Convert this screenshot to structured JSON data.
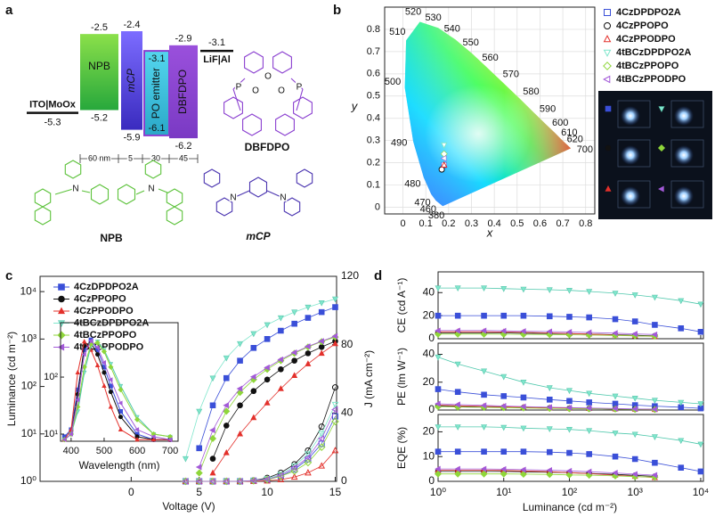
{
  "panel_labels": [
    "a",
    "b",
    "c",
    "d"
  ],
  "emitters": [
    {
      "name": "4CzDPDPO2A",
      "color": "#3a4fd8",
      "marker": "square"
    },
    {
      "name": "4CzPPOPO",
      "color": "#111111",
      "marker": "circle"
    },
    {
      "name": "4CzPPODPO",
      "color": "#e3302b",
      "marker": "triangle"
    },
    {
      "name": "4tBCzDPDPO2A",
      "color": "#7fe6cc",
      "marker": "triangle-down"
    },
    {
      "name": "4tBCzPPOPO",
      "color": "#8fd63a",
      "marker": "diamond"
    },
    {
      "name": "4tBCzPPODPO",
      "color": "#a35ad8",
      "marker": "triangle-left"
    }
  ],
  "energy_diagram": {
    "layers": [
      {
        "name": "ITO|MoOx",
        "homo": -5.3
      },
      {
        "name": "NPB",
        "lumo": -2.5,
        "homo": -5.2
      },
      {
        "name": "mCP",
        "lumo": -2.4,
        "homo": -5.9
      },
      {
        "name": "PO emitter",
        "lumo": -3.1,
        "homo": -6.1
      },
      {
        "name": "DBFDPO",
        "lumo": -2.9,
        "homo": -6.2
      },
      {
        "name": "LiF|Al",
        "lumo": -3.1
      }
    ],
    "thicknesses": [
      "60 nm",
      "5",
      "30",
      "45"
    ],
    "molecules": [
      {
        "name": "DBFDPO",
        "atoms": [
          "O",
          "P",
          "O",
          "P",
          "O"
        ]
      },
      {
        "name": "NPB",
        "atoms": [
          "N",
          "N"
        ]
      },
      {
        "name": "mCP",
        "atoms": [
          "N",
          "N"
        ]
      }
    ]
  },
  "cie": {
    "xlabel": "x",
    "ylabel": "y",
    "xlim": [
      -0.08,
      0.84
    ],
    "ylim": [
      -0.03,
      0.9
    ],
    "xticks": [
      0,
      0.1,
      0.2,
      0.3,
      0.4,
      0.5,
      0.6,
      0.7,
      0.8
    ],
    "yticks": [
      0,
      0.1,
      0.2,
      0.3,
      0.4,
      0.5,
      0.6,
      0.7,
      0.8
    ],
    "grid": true,
    "wavelengths": [
      380,
      460,
      470,
      480,
      490,
      500,
      510,
      520,
      530,
      540,
      550,
      560,
      570,
      580,
      590,
      600,
      610,
      620,
      700
    ],
    "locus_x": [
      0.174,
      0.144,
      0.124,
      0.091,
      0.045,
      0.008,
      0.014,
      0.074,
      0.155,
      0.23,
      0.302,
      0.373,
      0.444,
      0.513,
      0.575,
      0.627,
      0.666,
      0.691,
      0.735
    ],
    "locus_y": [
      0.005,
      0.03,
      0.058,
      0.133,
      0.295,
      0.538,
      0.75,
      0.834,
      0.806,
      0.754,
      0.692,
      0.624,
      0.555,
      0.487,
      0.424,
      0.372,
      0.334,
      0.308,
      0.265
    ],
    "points_x": [
      0.18,
      0.17,
      0.18,
      0.18,
      0.18,
      0.18
    ],
    "points_y": [
      0.19,
      0.17,
      0.19,
      0.28,
      0.24,
      0.22
    ]
  },
  "jvl": {
    "xlabel": "Voltage (V)",
    "ylabel": "Luminance (cd m⁻²)",
    "y2label": "J (mA cm⁻²)",
    "xlim": [
      -6.7,
      15.1
    ],
    "xticks": [
      0,
      5,
      10,
      15
    ],
    "ylim": [
      1,
      21000
    ],
    "log_y": true,
    "yticks": [
      {
        "value": 1,
        "label": "10⁰"
      },
      {
        "value": 10,
        "label": "10¹"
      },
      {
        "value": 100,
        "label": "10²"
      },
      {
        "value": 1000,
        "label": "10³"
      },
      {
        "value": 10000,
        "label": "10⁴"
      }
    ],
    "y2lim": [
      0,
      120
    ],
    "y2ticks": [
      0,
      40,
      80,
      120
    ],
    "voltage": [
      4,
      5,
      6,
      7,
      8,
      9,
      10,
      11,
      12,
      13,
      14,
      15
    ],
    "luminance": [
      [
        null,
        5,
        40,
        150,
        350,
        650,
        1000,
        1500,
        2100,
        2800,
        3700,
        4700
      ],
      [
        null,
        null,
        3,
        15,
        40,
        80,
        140,
        230,
        350,
        500,
        680,
        900
      ],
      [
        null,
        null,
        1.5,
        4,
        10,
        22,
        45,
        90,
        170,
        300,
        500,
        800
      ],
      [
        3,
        30,
        150,
        400,
        800,
        1300,
        2000,
        2800,
        3700,
        4700,
        5800,
        7000
      ],
      [
        null,
        1.5,
        8,
        30,
        75,
        140,
        230,
        350,
        500,
        680,
        880,
        1100
      ],
      [
        null,
        2,
        12,
        40,
        90,
        160,
        250,
        370,
        520,
        700,
        900,
        1150
      ]
    ],
    "current_density": [
      [
        0,
        0,
        0,
        0,
        0,
        0.3,
        1,
        3,
        7,
        13,
        22,
        38
      ],
      [
        0,
        0,
        0,
        0,
        0,
        0.5,
        2,
        5,
        10,
        18,
        32,
        55
      ],
      [
        0,
        0,
        0,
        0,
        0,
        0,
        0.3,
        1,
        2.5,
        5,
        9,
        18
      ],
      [
        0,
        0,
        0,
        0,
        0,
        0.4,
        1.5,
        4,
        9,
        16,
        28,
        45
      ],
      [
        0,
        0,
        0,
        0,
        0,
        0.3,
        1,
        3,
        6,
        11,
        20,
        35
      ],
      [
        0,
        0,
        0,
        0,
        0,
        0.4,
        1.2,
        3.5,
        8,
        14,
        25,
        42
      ]
    ],
    "inset": {
      "xlabel": "Wavelength (nm)",
      "xlim": [
        368,
        724
      ],
      "xticks": [
        400,
        500,
        600,
        700
      ],
      "ylim": [
        7.5,
        900
      ],
      "log_y": true,
      "yticks": [
        {
          "value": 10,
          "label": "10¹"
        },
        {
          "value": 100,
          "label": "10²"
        }
      ],
      "wavelength": [
        380,
        400,
        420,
        440,
        460,
        480,
        500,
        520,
        550,
        600,
        650,
        700
      ],
      "spectra": [
        [
          9,
          12,
          60,
          300,
          450,
          300,
          150,
          70,
          25,
          10,
          8,
          8
        ],
        [
          8,
          10,
          50,
          350,
          400,
          250,
          120,
          55,
          20,
          9,
          8,
          8
        ],
        [
          8,
          12,
          120,
          420,
          300,
          160,
          70,
          30,
          12,
          8,
          8,
          8
        ],
        [
          8,
          10,
          25,
          120,
          350,
          420,
          300,
          170,
          70,
          20,
          10,
          9
        ],
        [
          8,
          10,
          30,
          150,
          380,
          400,
          280,
          150,
          60,
          18,
          10,
          9
        ],
        [
          8,
          10,
          40,
          250,
          430,
          330,
          180,
          90,
          35,
          12,
          9,
          8
        ]
      ]
    }
  },
  "efficiency": {
    "xlabel": "Luminance (cd m⁻²)",
    "xlim": [
      1,
      11000
    ],
    "log_x": true,
    "xticks": [
      {
        "value": 1,
        "label": "10⁰"
      },
      {
        "value": 10,
        "label": "10¹"
      },
      {
        "value": 100,
        "label": "10²"
      },
      {
        "value": 1000,
        "label": "10³"
      },
      {
        "value": 10000,
        "label": "10⁴"
      }
    ],
    "x": [
      1,
      2,
      5,
      10,
      20,
      50,
      100,
      200,
      500,
      1000,
      2000,
      5000,
      10000
    ],
    "panels": [
      {
        "ylabel": "CE (cd A⁻¹)",
        "ylim": [
          0,
          58
        ],
        "yticks": [
          0,
          20,
          40
        ],
        "series": [
          [
            20,
            20,
            20,
            20,
            20,
            19.5,
            19,
            18.5,
            17,
            15,
            12,
            9,
            6
          ],
          [
            5,
            5,
            5,
            5,
            4.8,
            4.6,
            4.3,
            4,
            3.5,
            3,
            2.5,
            null,
            null
          ],
          [
            6,
            6,
            6,
            5.8,
            5.5,
            5,
            4.5,
            4,
            3.2,
            2.5,
            2,
            null,
            null
          ],
          [
            44,
            44,
            44,
            43.5,
            43,
            42.5,
            42,
            41,
            39.5,
            38,
            36,
            33,
            30
          ],
          [
            4,
            4,
            4,
            3.9,
            3.8,
            3.6,
            3.4,
            3.2,
            2.9,
            2.5,
            2.2,
            null,
            null
          ],
          [
            7,
            7,
            7,
            6.8,
            6.5,
            6.2,
            5.8,
            5.4,
            4.8,
            4.2,
            3.6,
            null,
            null
          ]
        ]
      },
      {
        "ylabel": "PE (lm W⁻¹)",
        "ylim": [
          0,
          48
        ],
        "yticks": [
          0,
          20,
          40
        ],
        "series": [
          [
            15,
            13,
            11,
            10,
            9,
            7.5,
            6.5,
            5.5,
            4.5,
            3.5,
            2.8,
            2,
            1.2
          ],
          [
            3,
            2.6,
            2.2,
            2,
            1.7,
            1.4,
            1.2,
            1,
            0.8,
            0.6,
            0.5,
            null,
            null
          ],
          [
            3.5,
            3,
            2.6,
            2.3,
            2,
            1.6,
            1.3,
            1.1,
            0.8,
            0.6,
            0.4,
            null,
            null
          ],
          [
            38,
            33,
            28,
            24,
            20,
            16,
            14,
            12,
            10,
            8.5,
            7,
            5.5,
            4.5
          ],
          [
            2.5,
            2.2,
            1.9,
            1.7,
            1.5,
            1.2,
            1,
            0.9,
            0.7,
            0.5,
            0.4,
            null,
            null
          ],
          [
            4.5,
            3.9,
            3.3,
            2.9,
            2.5,
            2,
            1.7,
            1.4,
            1.1,
            0.8,
            0.6,
            null,
            null
          ]
        ]
      },
      {
        "ylabel": "EQE (%)",
        "ylim": [
          0,
          27
        ],
        "yticks": [
          0,
          10,
          20
        ],
        "series": [
          [
            12,
            12,
            12,
            12,
            12,
            11.8,
            11.5,
            11,
            10,
            9,
            7.5,
            5.5,
            4
          ],
          [
            4,
            4,
            4,
            4,
            3.9,
            3.7,
            3.5,
            3.2,
            2.8,
            2.4,
            2,
            null,
            null
          ],
          [
            4.5,
            4.5,
            4.5,
            4.4,
            4.2,
            3.9,
            3.5,
            3.1,
            2.5,
            2,
            1.5,
            null,
            null
          ],
          [
            22,
            22,
            22,
            21.8,
            21.5,
            21.2,
            21,
            20.5,
            19.5,
            19,
            18,
            16.5,
            15
          ],
          [
            3,
            3,
            3,
            3,
            2.9,
            2.8,
            2.6,
            2.5,
            2.2,
            1.9,
            1.7,
            null,
            null
          ],
          [
            5,
            5,
            5,
            4.9,
            4.7,
            4.5,
            4.2,
            3.9,
            3.4,
            2.9,
            2.5,
            null,
            null
          ]
        ]
      }
    ]
  }
}
